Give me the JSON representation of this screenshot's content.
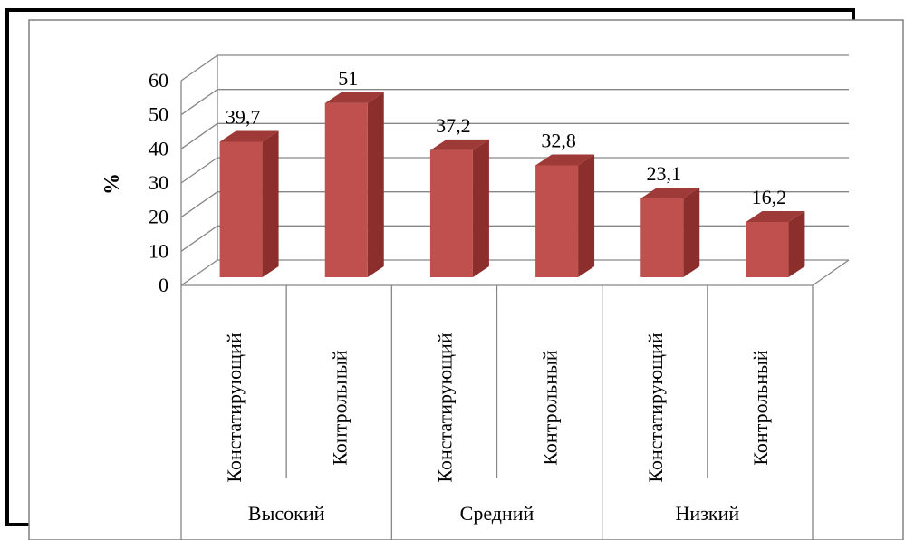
{
  "chart_data": {
    "type": "bar",
    "style": "3d-column",
    "ylabel": "%",
    "ylim": [
      0,
      60
    ],
    "yticks": [
      0,
      10,
      20,
      30,
      40,
      50,
      60
    ],
    "grid": true,
    "legend": "none",
    "categories": [
      "Констатирующий",
      "Контрольный",
      "Констатирующий",
      "Контрольный",
      "Констатирующий",
      "Контрольный"
    ],
    "groups": [
      {
        "label": "Высокий",
        "span": 2
      },
      {
        "label": "Средний",
        "span": 2
      },
      {
        "label": "Низкий",
        "span": 2
      }
    ],
    "values": [
      39.7,
      51,
      37.2,
      32.8,
      23.1,
      16.2
    ],
    "data_labels": [
      "39,7",
      "51",
      "37,2",
      "32,8",
      "23,1",
      "16,2"
    ]
  },
  "colors": {
    "bar_front": "#C0504D",
    "bar_side": "#8B2E2C",
    "bar_top": "#9E3A37",
    "grid": "#868686",
    "frame": "#000000",
    "text": "#000000"
  }
}
